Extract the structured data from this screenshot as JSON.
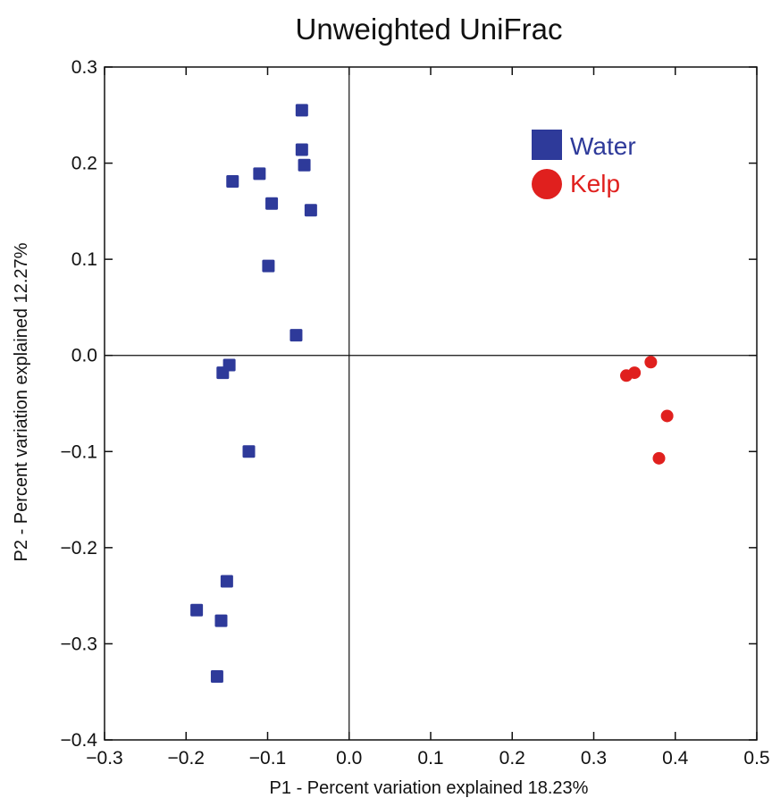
{
  "chart_data": {
    "type": "scatter",
    "title": "Unweighted UniFrac",
    "xlabel": "P1 - Percent variation explained 18.23%",
    "ylabel": "P2 - Percent variation explained 12.27%",
    "xlim": [
      -0.3,
      0.5
    ],
    "ylim": [
      -0.4,
      0.3
    ],
    "x_ticks": [
      -0.3,
      -0.2,
      -0.1,
      0.0,
      0.1,
      0.2,
      0.3,
      0.4,
      0.5
    ],
    "x_tick_labels": [
      "−0.3",
      "−0.2",
      "−0.1",
      "0.0",
      "0.1",
      "0.2",
      "0.3",
      "0.4",
      "0.5"
    ],
    "y_ticks": [
      0.3,
      0.2,
      0.1,
      0.0,
      -0.1,
      -0.2,
      -0.3,
      -0.4
    ],
    "y_tick_labels": [
      "0.3",
      "0.2",
      "0.1",
      "0.0",
      "−0.1",
      "−0.2",
      "−0.3",
      "−0.4"
    ],
    "grid": false,
    "zero_lines": true,
    "legend_position": "top-right",
    "series": [
      {
        "name": "Water",
        "marker": "square",
        "color": "#2e3a9a",
        "points": [
          {
            "x": -0.058,
            "y": 0.255
          },
          {
            "x": -0.058,
            "y": 0.214
          },
          {
            "x": -0.055,
            "y": 0.198
          },
          {
            "x": -0.11,
            "y": 0.189
          },
          {
            "x": -0.143,
            "y": 0.181
          },
          {
            "x": -0.095,
            "y": 0.158
          },
          {
            "x": -0.047,
            "y": 0.151
          },
          {
            "x": -0.099,
            "y": 0.093
          },
          {
            "x": -0.065,
            "y": 0.021
          },
          {
            "x": -0.147,
            "y": -0.01
          },
          {
            "x": -0.155,
            "y": -0.018
          },
          {
            "x": -0.123,
            "y": -0.1
          },
          {
            "x": -0.15,
            "y": -0.235
          },
          {
            "x": -0.187,
            "y": -0.265
          },
          {
            "x": -0.157,
            "y": -0.276
          },
          {
            "x": -0.162,
            "y": -0.334
          }
        ]
      },
      {
        "name": "Kelp",
        "marker": "circle",
        "color": "#e0201e",
        "points": [
          {
            "x": 0.34,
            "y": -0.021
          },
          {
            "x": 0.35,
            "y": -0.018
          },
          {
            "x": 0.37,
            "y": -0.007
          },
          {
            "x": 0.39,
            "y": -0.063
          },
          {
            "x": 0.38,
            "y": -0.107
          }
        ]
      }
    ]
  }
}
